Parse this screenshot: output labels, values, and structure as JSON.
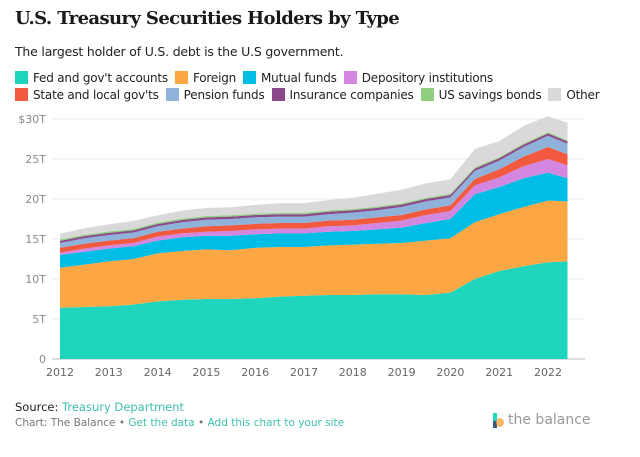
{
  "title": "U.S. Treasury Securities Holders by Type",
  "subtitle": "The largest holder of U.S. debt is the U.S government.",
  "footer": {
    "source_label": "Source:",
    "source_link": "Treasury Department",
    "chart_credit": "Chart: The Balance",
    "sep": "•",
    "get_data": "Get the data",
    "add_chart": "Add this chart to your site",
    "logo_text": "the balance"
  },
  "chart_data": {
    "type": "area",
    "stacked": true,
    "x": [
      2012,
      2012.5,
      2013,
      2013.5,
      2014,
      2014.5,
      2015,
      2015.5,
      2016,
      2016.5,
      2017,
      2017.5,
      2018,
      2018.5,
      2019,
      2019.5,
      2020,
      2020.5,
      2021,
      2021.5,
      2022,
      2022.4
    ],
    "xticks": [
      2012,
      2013,
      2014,
      2015,
      2016,
      2017,
      2018,
      2019,
      2020,
      2021,
      2022
    ],
    "yticks": [
      0,
      5,
      10,
      15,
      20,
      25,
      30
    ],
    "ytick_labels": [
      "0",
      "5T",
      "10T",
      "15T",
      "20T",
      "25T",
      "$30T"
    ],
    "ylim": [
      0,
      30
    ],
    "grid": true,
    "legend_position": "top",
    "series": [
      {
        "name": "Fed and gov't accounts",
        "color": "#1fd5bd",
        "values": [
          6.4,
          6.5,
          6.6,
          6.8,
          7.2,
          7.4,
          7.5,
          7.5,
          7.6,
          7.8,
          7.9,
          8.0,
          8.0,
          8.1,
          8.1,
          8.0,
          8.3,
          10.0,
          11.0,
          11.6,
          12.1,
          12.2
        ]
      },
      {
        "name": "Foreign",
        "color": "#fda744",
        "values": [
          5.0,
          5.3,
          5.6,
          5.7,
          6.0,
          6.1,
          6.2,
          6.1,
          6.3,
          6.2,
          6.1,
          6.2,
          6.3,
          6.3,
          6.4,
          6.8,
          6.8,
          7.1,
          7.1,
          7.4,
          7.7,
          7.5
        ]
      },
      {
        "name": "Mutual funds",
        "color": "#00bde5",
        "values": [
          1.6,
          1.6,
          1.6,
          1.6,
          1.6,
          1.7,
          1.7,
          1.8,
          1.7,
          1.7,
          1.7,
          1.7,
          1.7,
          1.8,
          1.9,
          2.2,
          2.4,
          3.5,
          3.4,
          3.6,
          3.5,
          2.9
        ]
      },
      {
        "name": "Depository institutions",
        "color": "#d387e0",
        "values": [
          0.3,
          0.4,
          0.4,
          0.4,
          0.5,
          0.5,
          0.5,
          0.6,
          0.6,
          0.6,
          0.6,
          0.7,
          0.7,
          0.8,
          0.9,
          1.0,
          1.0,
          1.1,
          1.2,
          1.5,
          1.7,
          1.6
        ]
      },
      {
        "name": "State and local gov'ts",
        "color": "#f25a3f",
        "values": [
          0.6,
          0.6,
          0.6,
          0.6,
          0.6,
          0.6,
          0.7,
          0.7,
          0.7,
          0.7,
          0.7,
          0.7,
          0.7,
          0.7,
          0.7,
          0.7,
          0.7,
          0.8,
          1.0,
          1.2,
          1.5,
          1.4
        ]
      },
      {
        "name": "Pension funds",
        "color": "#8eb2d9",
        "values": [
          0.6,
          0.7,
          0.7,
          0.7,
          0.7,
          0.8,
          0.8,
          0.8,
          0.8,
          0.8,
          0.8,
          0.8,
          0.9,
          0.9,
          1.0,
          1.0,
          1.0,
          1.0,
          1.1,
          1.2,
          1.4,
          1.3
        ]
      },
      {
        "name": "Insurance companies",
        "color": "#8c4a8c",
        "values": [
          0.26,
          0.26,
          0.26,
          0.27,
          0.27,
          0.28,
          0.3,
          0.3,
          0.3,
          0.3,
          0.3,
          0.3,
          0.3,
          0.3,
          0.3,
          0.3,
          0.3,
          0.3,
          0.3,
          0.3,
          0.3,
          0.3
        ]
      },
      {
        "name": "US savings bonds",
        "color": "#8fcf7e",
        "values": [
          0.18,
          0.18,
          0.18,
          0.18,
          0.18,
          0.17,
          0.17,
          0.17,
          0.16,
          0.16,
          0.16,
          0.16,
          0.15,
          0.15,
          0.15,
          0.15,
          0.15,
          0.15,
          0.14,
          0.14,
          0.14,
          0.14
        ]
      },
      {
        "name": "Other",
        "color": "#d9d9d9",
        "values": [
          0.7,
          0.8,
          0.9,
          1.0,
          0.9,
          1.0,
          1.0,
          1.0,
          1.1,
          1.2,
          1.2,
          1.3,
          1.4,
          1.6,
          1.7,
          1.8,
          1.8,
          2.3,
          2.0,
          2.2,
          2.0,
          2.2
        ]
      }
    ]
  }
}
